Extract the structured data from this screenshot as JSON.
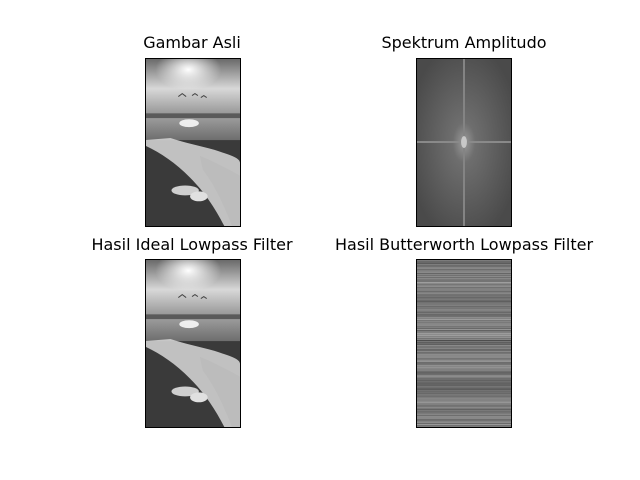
{
  "figure": {
    "panels": [
      {
        "title": "Gambar Asli",
        "image": "grayscale-beach-photo"
      },
      {
        "title": "Spektrum Amplitudo",
        "image": "fft-amplitude-spectrum"
      },
      {
        "title": "Hasil Ideal Lowpass Filter",
        "image": "grayscale-beach-photo-filtered"
      },
      {
        "title": "Hasil Butterworth Lowpass Filter",
        "image": "horizontal-striped-artifact"
      }
    ]
  }
}
